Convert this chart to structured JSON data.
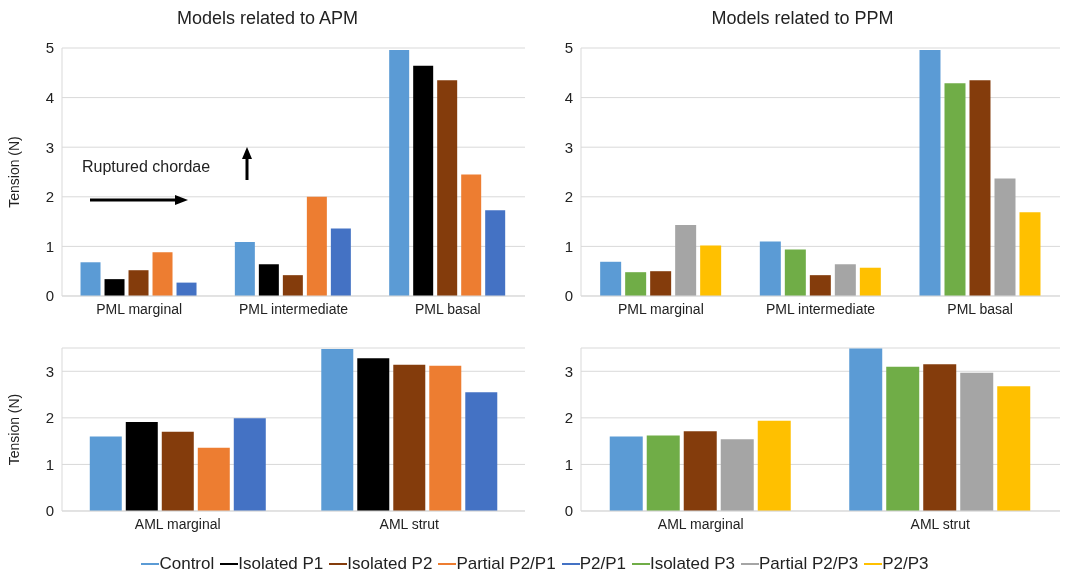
{
  "chart_data": [
    {
      "type": "bar",
      "title": "Models related to APM",
      "ylabel": "Tension (N)",
      "categories": [
        "PML marginal",
        "PML intermediate",
        "PML basal"
      ],
      "ylim": [
        0,
        5
      ],
      "yticks": [
        0,
        1,
        2,
        3,
        4,
        5
      ],
      "grid": "y",
      "legend": "bottom",
      "annotations": [
        "Ruptured chordae"
      ],
      "series": [
        {
          "name": "Control",
          "color": "#5b9bd5",
          "values": [
            0.68,
            1.09,
            4.96
          ]
        },
        {
          "name": "Isolated P1",
          "color": "#000000",
          "values": [
            0.34,
            0.64,
            4.64
          ]
        },
        {
          "name": "Isolated P2",
          "color": "#843c0c",
          "values": [
            0.52,
            0.42,
            4.35
          ]
        },
        {
          "name": "Partial P2/P1",
          "color": "#ed7d31",
          "values": [
            0.88,
            2.0,
            2.45
          ]
        },
        {
          "name": "P2/P1",
          "color": "#4472c4",
          "values": [
            0.27,
            1.36,
            1.73
          ]
        }
      ]
    },
    {
      "type": "bar",
      "title": "Models related to PPM",
      "categories": [
        "PML marginal",
        "PML intermediate",
        "PML basal"
      ],
      "ylim": [
        0,
        5
      ],
      "yticks": [
        0,
        1,
        2,
        3,
        4,
        5
      ],
      "grid": "y",
      "legend": "bottom",
      "series": [
        {
          "name": "Control",
          "color": "#5b9bd5",
          "values": [
            0.69,
            1.1,
            4.96
          ]
        },
        {
          "name": "Isolated P3",
          "color": "#70ad47",
          "values": [
            0.48,
            0.94,
            4.29
          ]
        },
        {
          "name": "Isolated P2",
          "color": "#843c0c",
          "values": [
            0.5,
            0.42,
            4.35
          ]
        },
        {
          "name": "Partial P2/P3",
          "color": "#a5a5a5",
          "values": [
            1.43,
            0.64,
            2.37
          ]
        },
        {
          "name": "P2/P3",
          "color": "#ffc000",
          "values": [
            1.02,
            0.57,
            1.69
          ]
        }
      ]
    },
    {
      "type": "bar",
      "ylabel": "Tension (N)",
      "categories": [
        "AML marginal",
        "AML strut"
      ],
      "ylim": [
        0,
        3.5
      ],
      "yticks": [
        0,
        1,
        2,
        3
      ],
      "grid": "y",
      "legend": "bottom",
      "series": [
        {
          "name": "Control",
          "color": "#5b9bd5",
          "values": [
            1.6,
            3.48
          ]
        },
        {
          "name": "Isolated P1",
          "color": "#000000",
          "values": [
            1.91,
            3.28
          ]
        },
        {
          "name": "Isolated P2",
          "color": "#843c0c",
          "values": [
            1.7,
            3.14
          ]
        },
        {
          "name": "Partial P2/P1",
          "color": "#ed7d31",
          "values": [
            1.36,
            3.12
          ]
        },
        {
          "name": "P2/P1",
          "color": "#4472c4",
          "values": [
            1.99,
            2.55
          ]
        }
      ]
    },
    {
      "type": "bar",
      "categories": [
        "AML marginal",
        "AML strut"
      ],
      "ylim": [
        0,
        3.5
      ],
      "yticks": [
        0,
        1,
        2,
        3
      ],
      "grid": "y",
      "legend": "bottom",
      "series": [
        {
          "name": "Control",
          "color": "#5b9bd5",
          "values": [
            1.6,
            3.49
          ]
        },
        {
          "name": "Isolated P3",
          "color": "#70ad47",
          "values": [
            1.62,
            3.1
          ]
        },
        {
          "name": "Isolated P2",
          "color": "#843c0c",
          "values": [
            1.71,
            3.15
          ]
        },
        {
          "name": "Partial P2/P3",
          "color": "#a5a5a5",
          "values": [
            1.54,
            2.97
          ]
        },
        {
          "name": "P2/P3",
          "color": "#ffc000",
          "values": [
            1.94,
            2.68
          ]
        }
      ]
    }
  ]
}
